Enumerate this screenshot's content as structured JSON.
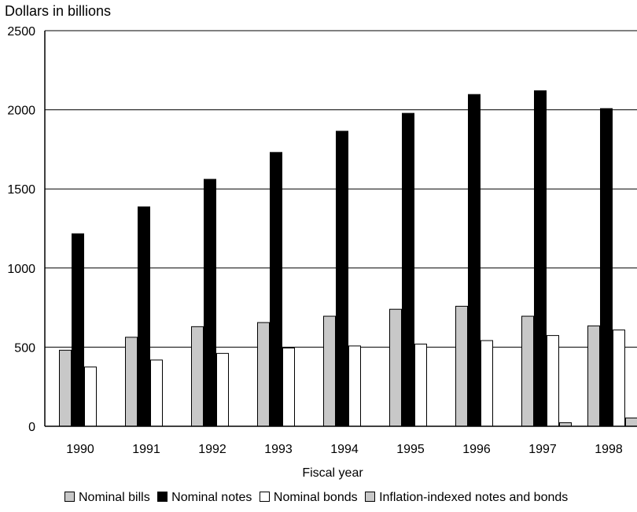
{
  "chart_data": {
    "type": "bar",
    "title": "",
    "ylabel": "Dollars in billions",
    "xlabel": "Fiscal year",
    "ylim": [
      0,
      2500
    ],
    "yticks": [
      0,
      500,
      1000,
      1500,
      2000,
      2500
    ],
    "grid": "horizontal",
    "legend_position": "bottom",
    "categories": [
      "1990",
      "1991",
      "1992",
      "1993",
      "1994",
      "1995",
      "1996",
      "1997",
      "1998"
    ],
    "series": [
      {
        "name": "Nominal bills",
        "color": "#c8c8c8",
        "values": [
          483,
          565,
          632,
          658,
          698,
          742,
          761,
          698,
          637
        ]
      },
      {
        "name": "Nominal notes",
        "color": "#000000",
        "values": [
          1219,
          1389,
          1563,
          1733,
          1867,
          1980,
          2099,
          2123,
          2010
        ]
      },
      {
        "name": "Nominal bonds",
        "color": "#ffffff",
        "values": [
          377,
          421,
          463,
          497,
          510,
          522,
          544,
          576,
          611
        ]
      },
      {
        "name": "Inflation-indexed notes and bonds",
        "color": "#c8c8c8",
        "values": [
          0,
          0,
          0,
          0,
          0,
          0,
          0,
          25,
          55
        ]
      }
    ]
  }
}
